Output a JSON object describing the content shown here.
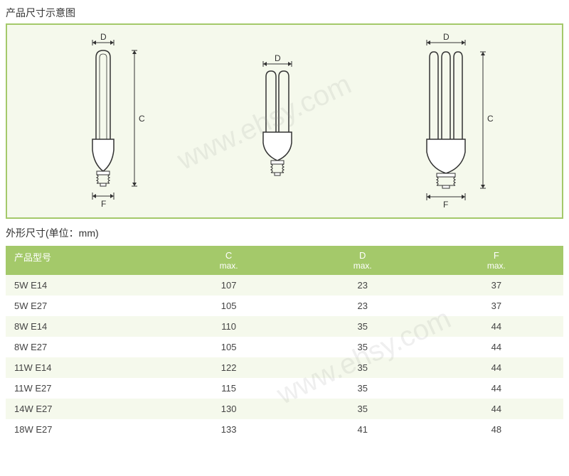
{
  "titles": {
    "diagram_title": "产品尺寸示意图",
    "dimensions_title": "外形尺寸(单位：mm)"
  },
  "diagram": {
    "labels": {
      "d": "D",
      "c": "C",
      "f": "F"
    },
    "border_color": "#a4c96a",
    "background_color": "#f5f9ec"
  },
  "watermark": {
    "text": "www.ehsy.com",
    "color": "rgba(150,150,150,0.15)"
  },
  "table": {
    "header_bg": "#a4c96a",
    "header_color": "#ffffff",
    "row_alt_bg": "#f5f9ec",
    "columns": [
      {
        "label": "产品型号",
        "sub": ""
      },
      {
        "label": "C",
        "sub": "max."
      },
      {
        "label": "D",
        "sub": "max."
      },
      {
        "label": "F",
        "sub": "max."
      }
    ],
    "rows": [
      {
        "model": "5W E14",
        "c": "107",
        "d": "23",
        "f": "37"
      },
      {
        "model": "5W E27",
        "c": "105",
        "d": "23",
        "f": "37"
      },
      {
        "model": "8W E14",
        "c": "110",
        "d": "35",
        "f": "44"
      },
      {
        "model": "8W E27",
        "c": "105",
        "d": "35",
        "f": "44"
      },
      {
        "model": "11W E14",
        "c": "122",
        "d": "35",
        "f": "44"
      },
      {
        "model": "11W E27",
        "c": "115",
        "d": "35",
        "f": "44"
      },
      {
        "model": "14W E27",
        "c": "130",
        "d": "35",
        "f": "44"
      },
      {
        "model": "18W E27",
        "c": "133",
        "d": "41",
        "f": "48"
      }
    ]
  }
}
